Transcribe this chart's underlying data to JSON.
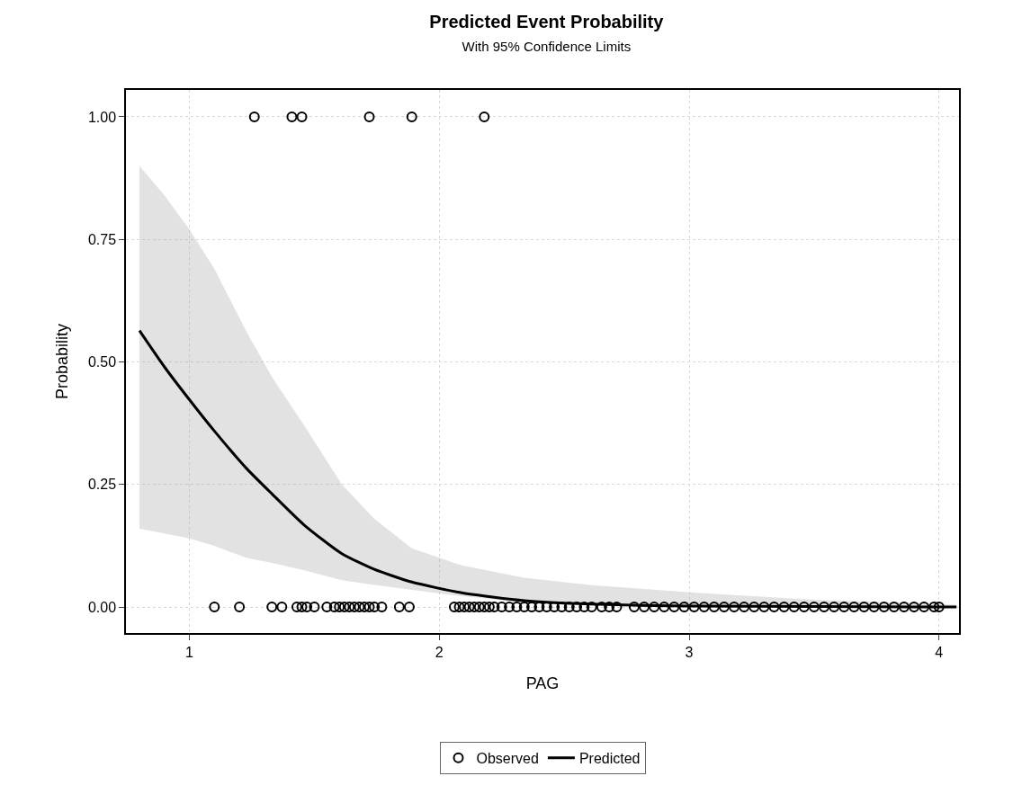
{
  "chart_data": {
    "type": "scatter",
    "title": "Predicted Event Probability",
    "subtitle": "With 95% Confidence Limits",
    "xlabel": "PAG",
    "ylabel": "Probability",
    "xlim": [
      0.746,
      4.08
    ],
    "ylim": [
      -0.053,
      1.055
    ],
    "xticks": [
      1,
      2,
      3,
      4
    ],
    "yticks": [
      {
        "value": 0,
        "label": "0.00"
      },
      {
        "value": 0.25,
        "label": "0.25"
      },
      {
        "value": 0.5,
        "label": "0.50"
      },
      {
        "value": 0.75,
        "label": "0.75"
      },
      {
        "value": 1,
        "label": "1.00"
      }
    ],
    "grid": true,
    "legend": "bottom",
    "line_style": "solid",
    "series": [
      {
        "name": "Observed",
        "marker": "circle",
        "color": "#000000",
        "x": [
          1.26,
          1.41,
          1.45,
          1.72,
          1.89,
          2.18,
          1.1,
          1.2,
          1.33,
          1.37,
          1.43,
          1.45,
          1.47,
          1.5,
          1.55,
          1.58,
          1.6,
          1.62,
          1.64,
          1.66,
          1.68,
          1.7,
          1.72,
          1.74,
          1.77,
          1.84,
          1.88,
          2.06,
          2.08,
          2.1,
          2.12,
          2.14,
          2.16,
          2.18,
          2.2,
          2.22,
          2.25,
          2.28,
          2.31,
          2.34,
          2.37,
          2.4,
          2.43,
          2.46,
          2.49,
          2.52,
          2.55,
          2.58,
          2.61,
          2.65,
          2.68,
          2.71,
          2.78,
          2.82,
          2.86,
          2.9,
          2.94,
          2.98,
          3.02,
          3.06,
          3.1,
          3.14,
          3.18,
          3.22,
          3.26,
          3.3,
          3.34,
          3.38,
          3.42,
          3.46,
          3.5,
          3.54,
          3.58,
          3.62,
          3.66,
          3.7,
          3.74,
          3.78,
          3.82,
          3.86,
          3.9,
          3.94,
          3.98,
          4.0
        ],
        "values": [
          1,
          1,
          1,
          1,
          1,
          1,
          0,
          0,
          0,
          0,
          0,
          0,
          0,
          0,
          0,
          0,
          0,
          0,
          0,
          0,
          0,
          0,
          0,
          0,
          0,
          0,
          0,
          0,
          0,
          0,
          0,
          0,
          0,
          0,
          0,
          0,
          0,
          0,
          0,
          0,
          0,
          0,
          0,
          0,
          0,
          0,
          0,
          0,
          0,
          0,
          0,
          0,
          0,
          0,
          0,
          0,
          0,
          0,
          0,
          0,
          0,
          0,
          0,
          0,
          0,
          0,
          0,
          0,
          0,
          0,
          0,
          0,
          0,
          0,
          0,
          0,
          0,
          0,
          0,
          0,
          0,
          0,
          0,
          0
        ]
      },
      {
        "name": "Predicted",
        "type": "line",
        "marker": "none",
        "color": "#000000",
        "x": [
          0.8,
          0.9,
          1.0,
          1.1,
          1.23,
          1.33,
          1.46,
          1.61,
          1.74,
          1.89,
          2.09,
          2.34,
          2.6,
          3.0,
          3.5,
          4.07
        ],
        "values": [
          0.564,
          0.49,
          0.423,
          0.359,
          0.282,
          0.231,
          0.167,
          0.109,
          0.077,
          0.051,
          0.029,
          0.013,
          0.006,
          0.002,
          0.001,
          0
        ],
        "lower": [
          0.16,
          0.15,
          0.14,
          0.125,
          0.1,
          0.09,
          0.075,
          0.055,
          0.045,
          0.035,
          0.022,
          0.01,
          0.004,
          0.001,
          0,
          0
        ],
        "upper": [
          0.9,
          0.84,
          0.77,
          0.69,
          0.56,
          0.47,
          0.37,
          0.25,
          0.18,
          0.12,
          0.085,
          0.06,
          0.045,
          0.03,
          0.015,
          0.005
        ]
      }
    ]
  }
}
